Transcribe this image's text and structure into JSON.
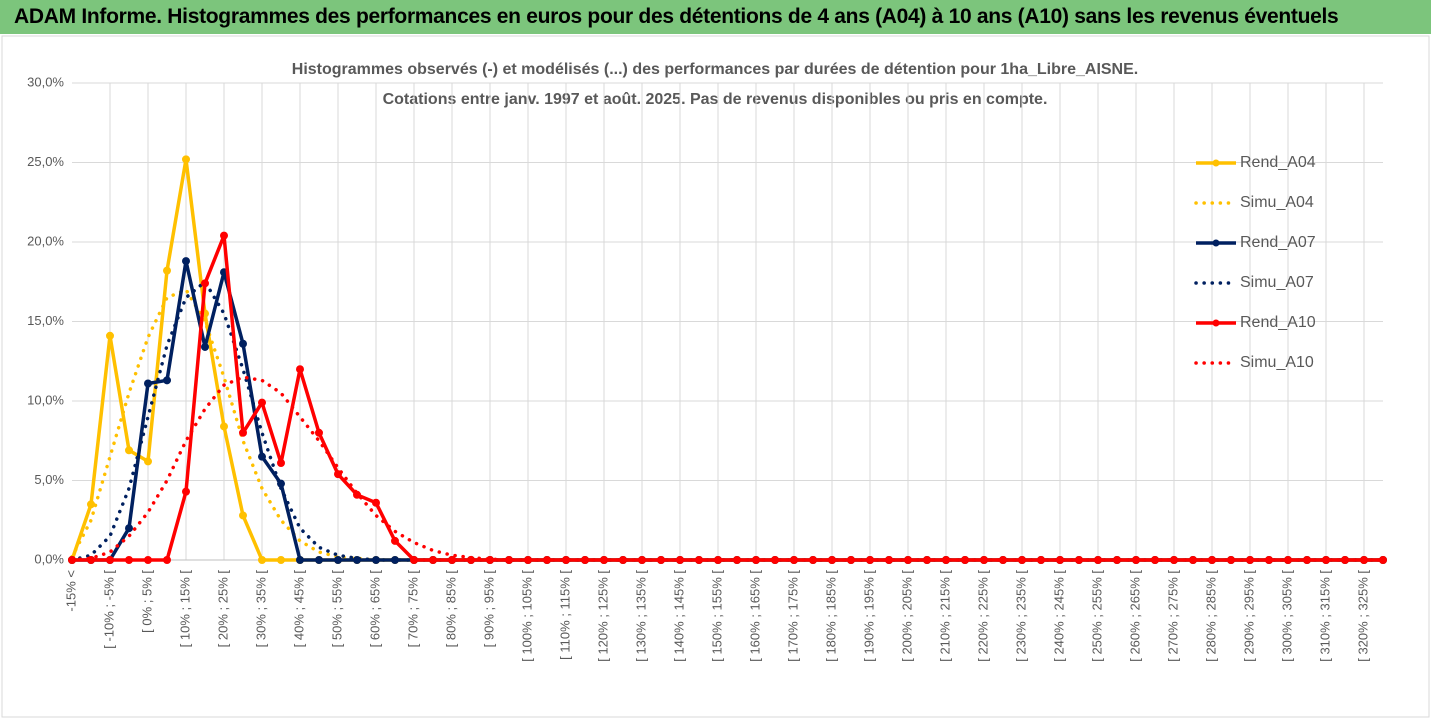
{
  "header": {
    "title": "ADAM Informe. Histogrammes des performances en euros pour des détentions de 4 ans (A04) à 10 ans (A10) sans les revenus éventuels"
  },
  "chart_data": {
    "type": "line",
    "title": "Histogrammes observés (-) et modélisés (...) des performances par durées de détention pour 1ha_Libre_AISNE.",
    "subtitle": "Cotations entre janv. 1997 et août. 2025. Pas de revenus disponibles ou pris en compte.",
    "categories": [
      "-15% <",
      null,
      "[ -10% ; -5% [",
      null,
      "[ 0% ; 5% [",
      null,
      "[ 10% ; 15% [",
      null,
      "[ 20% ; 25% [",
      null,
      "[ 30% ; 35% [",
      null,
      "[ 40% ; 45% [",
      null,
      "[ 50% ; 55% [",
      null,
      "[ 60% ; 65% [",
      null,
      "[ 70% ; 75% [",
      null,
      "[ 80% ; 85% [",
      null,
      "[ 90% ; 95% [",
      null,
      "[ 100% ; 105% [",
      null,
      "[ 110% ; 115% [",
      null,
      "[ 120% ; 125% [",
      null,
      "[ 130% ; 135% [",
      null,
      "[ 140% ; 145% [",
      null,
      "[ 150% ; 155% [",
      null,
      "[ 160% ; 165% [",
      null,
      "[ 170% ; 175% [",
      null,
      "[ 180% ; 185% [",
      null,
      "[ 190% ; 195% [",
      null,
      "[ 200% ; 205% [",
      null,
      "[ 210% ; 215% [",
      null,
      "[ 220% ; 225% [",
      null,
      "[ 230% ; 235% [",
      null,
      "[ 240% ; 245% [",
      null,
      "[ 250% ; 255% [",
      null,
      "[ 260% ; 265% [",
      null,
      "[ 270% ; 275% [",
      null,
      "[ 280% ; 285% [",
      null,
      "[ 290% ; 295% [",
      null,
      "[ 300% ; 305% [",
      null,
      "[ 310% ; 315% [",
      null,
      "[ 320% ; 325% [",
      null
    ],
    "series": [
      {
        "name": "Rend_A04",
        "color": "#ffc000",
        "style": "solid",
        "markers": true,
        "values": [
          0,
          3.5,
          14.1,
          6.9,
          6.2,
          18.2,
          25.2,
          15.5,
          8.4,
          2.8,
          0,
          0,
          0,
          0,
          0,
          0,
          0,
          0,
          0,
          0,
          0,
          0,
          0,
          0,
          0,
          0,
          0,
          0,
          0,
          0,
          0,
          0,
          0,
          0,
          0,
          0,
          0,
          0,
          0,
          0,
          0,
          0,
          0,
          0,
          0,
          0,
          0,
          0,
          0,
          0,
          0,
          0,
          0,
          0,
          0,
          0,
          0,
          0,
          0,
          0,
          0,
          0,
          0,
          0,
          0,
          0,
          0,
          0,
          0,
          0
        ]
      },
      {
        "name": "Simu_A04",
        "color": "#ffc000",
        "style": "dotted",
        "markers": false,
        "values": [
          0.2,
          2.5,
          6.5,
          10.5,
          14,
          16.5,
          17,
          15,
          11.5,
          7.5,
          4.5,
          2.5,
          1.2,
          0.5,
          0.2,
          0.1,
          0,
          0,
          0,
          0,
          0,
          0,
          0,
          0,
          0,
          0,
          0,
          0,
          0,
          0,
          0,
          0,
          0,
          0,
          0,
          0,
          0,
          0,
          0,
          0,
          0,
          0,
          0,
          0,
          0,
          0,
          0,
          0,
          0,
          0,
          0,
          0,
          0,
          0,
          0,
          0,
          0,
          0,
          0,
          0,
          0,
          0,
          0,
          0,
          0,
          0,
          0,
          0,
          0,
          0
        ]
      },
      {
        "name": "Rend_A07",
        "color": "#002060",
        "style": "solid",
        "markers": true,
        "values": [
          0,
          0,
          0,
          2,
          11.1,
          11.3,
          18.8,
          13.4,
          18.1,
          13.6,
          6.5,
          4.8,
          0,
          0,
          0,
          0,
          0,
          0,
          0,
          0,
          0,
          0,
          0,
          0,
          0,
          0,
          0,
          0,
          0,
          0,
          0,
          0,
          0,
          0,
          0,
          0,
          0,
          0,
          0,
          0,
          0,
          0,
          0,
          0,
          0,
          0,
          0,
          0,
          0,
          0,
          0,
          0,
          0,
          0,
          0,
          0,
          0,
          0,
          0,
          0,
          0,
          0,
          0,
          0,
          0,
          0,
          0,
          0,
          0,
          0
        ]
      },
      {
        "name": "Simu_A07",
        "color": "#002060",
        "style": "dotted",
        "markers": false,
        "values": [
          0,
          0.3,
          1.5,
          4.5,
          9,
          13.5,
          16.5,
          17.5,
          15.5,
          12,
          8,
          4.5,
          2,
          0.8,
          0.3,
          0.1,
          0,
          0,
          0,
          0,
          0,
          0,
          0,
          0,
          0,
          0,
          0,
          0,
          0,
          0,
          0,
          0,
          0,
          0,
          0,
          0,
          0,
          0,
          0,
          0,
          0,
          0,
          0,
          0,
          0,
          0,
          0,
          0,
          0,
          0,
          0,
          0,
          0,
          0,
          0,
          0,
          0,
          0,
          0,
          0,
          0,
          0,
          0,
          0,
          0,
          0,
          0,
          0,
          0,
          0
        ]
      },
      {
        "name": "Rend_A10",
        "color": "#ff0000",
        "style": "solid",
        "markers": true,
        "values": [
          0,
          0,
          0,
          0,
          0,
          0,
          4.3,
          17.4,
          20.4,
          8,
          9.9,
          6.1,
          12,
          8,
          5.4,
          4.1,
          3.6,
          1.2,
          0,
          0,
          0,
          0,
          0,
          0,
          0,
          0,
          0,
          0,
          0,
          0,
          0,
          0,
          0,
          0,
          0,
          0,
          0,
          0,
          0,
          0,
          0,
          0,
          0,
          0,
          0,
          0,
          0,
          0,
          0,
          0,
          0,
          0,
          0,
          0,
          0,
          0,
          0,
          0,
          0,
          0,
          0,
          0,
          0,
          0,
          0,
          0,
          0,
          0,
          0,
          0
        ]
      },
      {
        "name": "Simu_A10",
        "color": "#ff0000",
        "style": "dotted",
        "markers": false,
        "values": [
          0,
          0.1,
          0.5,
          1.5,
          3,
          5,
          7.5,
          9.5,
          11,
          11.5,
          11.3,
          10.5,
          9,
          7.5,
          5.8,
          4.2,
          2.8,
          1.8,
          1.1,
          0.6,
          0.3,
          0.15,
          0.05,
          0,
          0,
          0,
          0,
          0,
          0,
          0,
          0,
          0,
          0,
          0,
          0,
          0,
          0,
          0,
          0,
          0,
          0,
          0,
          0,
          0,
          0,
          0,
          0,
          0,
          0,
          0,
          0,
          0,
          0,
          0,
          0,
          0,
          0,
          0,
          0,
          0,
          0,
          0,
          0,
          0,
          0,
          0,
          0,
          0,
          0,
          0
        ]
      }
    ],
    "ylim": [
      0,
      30
    ],
    "yticks": [
      {
        "value": 0,
        "label": "0,0%"
      },
      {
        "value": 5,
        "label": "5,0%"
      },
      {
        "value": 10,
        "label": "10,0%"
      },
      {
        "value": 15,
        "label": "15,0%"
      },
      {
        "value": 20,
        "label": "20,0%"
      },
      {
        "value": 25,
        "label": "25,0%"
      },
      {
        "value": 30,
        "label": "30,0%"
      }
    ],
    "grid": true,
    "legend": "right"
  }
}
